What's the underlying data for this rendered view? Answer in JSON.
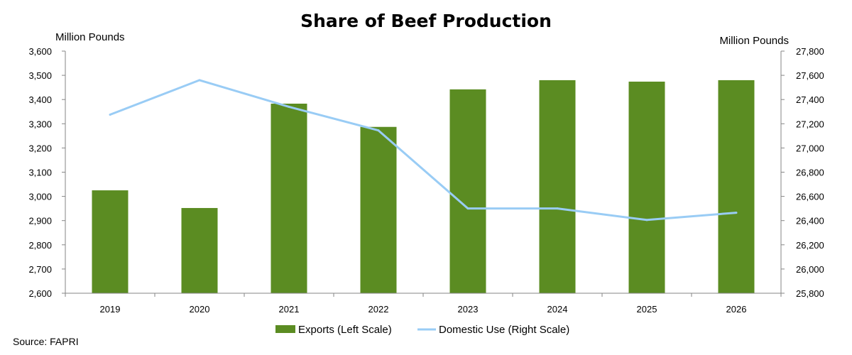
{
  "chart_data": {
    "type": "bar",
    "title": "Share of Beef Production",
    "left_axis_label": "Million Pounds",
    "right_axis_label": "Million Pounds",
    "categories": [
      "2019",
      "2020",
      "2021",
      "2022",
      "2023",
      "2024",
      "2025",
      "2026"
    ],
    "series": [
      {
        "name": "Exports (Left Scale)",
        "type": "bar",
        "axis": "left",
        "color": "#5b8c22",
        "values": [
          3025,
          2952,
          3383,
          3287,
          3442,
          3480,
          3474,
          3480
        ]
      },
      {
        "name": "Domestic Use (Right Scale)",
        "type": "line",
        "axis": "right",
        "color": "#99ccf5",
        "values": [
          27275,
          27560,
          27340,
          27145,
          26500,
          26500,
          26405,
          26465
        ]
      }
    ],
    "left_ylim": [
      2600,
      3600
    ],
    "left_ticks": [
      "2,600",
      "2,700",
      "2,800",
      "2,900",
      "3,000",
      "3,100",
      "3,200",
      "3,300",
      "3,400",
      "3,500",
      "3,600"
    ],
    "right_ylim": [
      25800,
      27800
    ],
    "right_ticks": [
      "25,800",
      "26,000",
      "26,200",
      "26,400",
      "26,600",
      "26,800",
      "27,000",
      "27,200",
      "27,400",
      "27,600",
      "27,800"
    ],
    "grid": false,
    "legend_position": "bottom-center",
    "source": "Source: FAPRI"
  }
}
